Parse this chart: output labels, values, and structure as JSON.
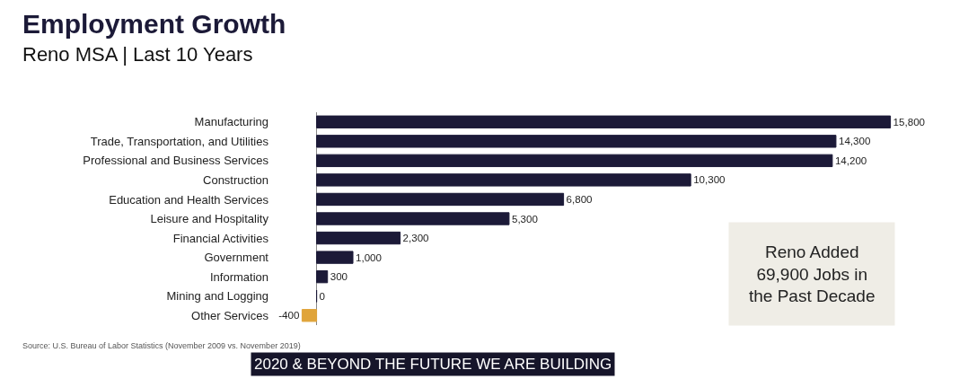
{
  "chart_data": {
    "type": "bar",
    "orientation": "horizontal",
    "title": "Employment Growth",
    "subtitle": "Reno MSA | Last 10 Years",
    "categories": [
      "Manufacturing",
      "Trade, Transportation, and Utilities",
      "Professional and Business Services",
      "Construction",
      "Education and Health Services",
      "Leisure and Hospitality",
      "Financial Activities",
      "Government",
      "Information",
      "Mining and Logging",
      "Other Services"
    ],
    "values": [
      15800,
      14300,
      14200,
      10300,
      6800,
      5300,
      2300,
      1000,
      300,
      0,
      -400
    ],
    "colors": [
      "#1c1a38",
      "#1c1a38",
      "#1c1a38",
      "#1c1a38",
      "#1c1a38",
      "#1c1a38",
      "#1c1a38",
      "#1c1a38",
      "#1c1a38",
      "#1c1a38",
      "#e0a43a"
    ],
    "value_labels": [
      "15,800",
      "14,300",
      "14,200",
      "10,300",
      "6,800",
      "5,300",
      "2,300",
      "1,000",
      "300",
      "0",
      "-400"
    ],
    "tick_labels": "y",
    "annotations": [
      "Reno Added 69,900 Jobs in the Past Decade",
      "Source: U.S. Bureau of Labor Statistics (November 2009 vs. November 2019)",
      "2020 & BEYOND THE FUTURE WE ARE BUILDING"
    ]
  }
}
